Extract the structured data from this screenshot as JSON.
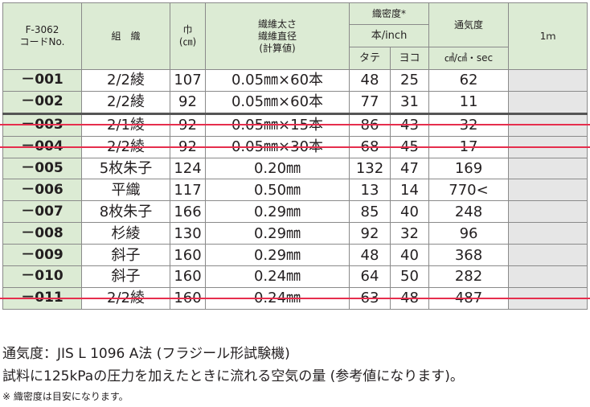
{
  "header": {
    "code_line1": "F-3062",
    "code_line2": "コードNo.",
    "weave": "組　織",
    "width_line1": "巾",
    "width_line2": "(㎝)",
    "fiber_line1": "繊維太さ",
    "fiber_line2": "繊維直径",
    "fiber_line3": "(計算値)",
    "density": "織密度*",
    "density_unit": "本/inch",
    "warp": "タテ",
    "weft": "ヨコ",
    "permeability": "通気度",
    "permeability_unit": "㎤/㎠・sec",
    "price_1m": "1ｍ"
  },
  "rows": [
    {
      "code": "－001",
      "weave": "2/2綾",
      "width": "107",
      "fiber": "0.05㎜×60本",
      "warp": "48",
      "weft": "25",
      "perm": "62",
      "struck": false
    },
    {
      "code": "－002",
      "weave": "2/2綾",
      "width": "92",
      "fiber": "0.05㎜×60本",
      "warp": "77",
      "weft": "31",
      "perm": "11",
      "struck": false
    },
    {
      "code": "－003",
      "weave": "2/1綾",
      "width": "92",
      "fiber": "0.05㎜×15本",
      "warp": "86",
      "weft": "43",
      "perm": "32",
      "struck": true
    },
    {
      "code": "－004",
      "weave": "2/2綾",
      "width": "92",
      "fiber": "0.05㎜×30本",
      "warp": "68",
      "weft": "45",
      "perm": "17",
      "struck": true
    },
    {
      "code": "－005",
      "weave": "5枚朱子",
      "width": "124",
      "fiber": "0.20㎜",
      "warp": "132",
      "weft": "47",
      "perm": "169",
      "struck": false
    },
    {
      "code": "－006",
      "weave": "平織",
      "width": "117",
      "fiber": "0.50㎜",
      "warp": "13",
      "weft": "14",
      "perm": "770<",
      "struck": false
    },
    {
      "code": "－007",
      "weave": "8枚朱子",
      "width": "166",
      "fiber": "0.29㎜",
      "warp": "85",
      "weft": "40",
      "perm": "248",
      "struck": false
    },
    {
      "code": "－008",
      "weave": "杉綾",
      "width": "130",
      "fiber": "0.29㎜",
      "warp": "92",
      "weft": "32",
      "perm": "96",
      "struck": false
    },
    {
      "code": "－009",
      "weave": "斜子",
      "width": "160",
      "fiber": "0.29㎜",
      "warp": "48",
      "weft": "40",
      "perm": "368",
      "struck": false
    },
    {
      "code": "－010",
      "weave": "斜子",
      "width": "160",
      "fiber": "0.24㎜",
      "warp": "64",
      "weft": "50",
      "perm": "282",
      "struck": false
    },
    {
      "code": "－011",
      "weave": "2/2綾",
      "width": "160",
      "fiber": "0.24㎜",
      "warp": "63",
      "weft": "48",
      "perm": "487",
      "struck": true
    }
  ],
  "notes": {
    "line1": "通気度：JIS L 1096 A法 (フラジール形試験機)",
    "line2": "試料に125kPaの圧力を加えたときに流れる空気の量 (参考値になります)。",
    "line3": "※ 織密度は目安になります。"
  },
  "colors": {
    "header_bg": "#dcebd4",
    "price_bg": "#e6e6e6",
    "strike": "#e62e4d"
  }
}
